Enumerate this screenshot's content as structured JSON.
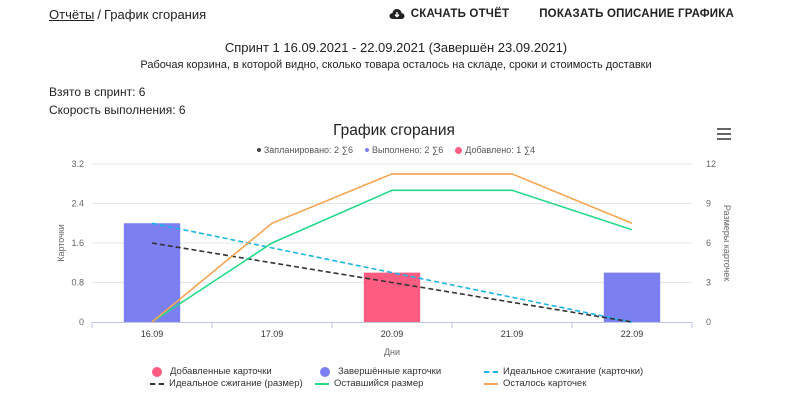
{
  "breadcrumb": {
    "parent": "Отчёты",
    "separator": "/",
    "current": "График сгорания"
  },
  "actions": {
    "download": "СКАЧАТЬ ОТЧЁТ",
    "show_description": "ПОКАЗАТЬ ОПИСАНИЕ ГРАФИКА"
  },
  "sprint": {
    "title": "Спринт 1 16.09.2021 - 22.09.2021 (Завершён 23.09.2021)",
    "description": "Рабочая корзина, в которой видно, сколько товара осталось на складе, сроки и стоимость доставки"
  },
  "stats": {
    "taken": "Взято в спринт: 6",
    "speed": "Скорость выполнения: 6"
  },
  "top_legend": [
    {
      "label": "Запланировано: 2 ∑6",
      "color": "#444444"
    },
    {
      "label": "Выполнено: 2 ∑6",
      "color": "#7b7ff0"
    },
    {
      "label": "Добавлено: 1 ∑4",
      "color": "#ff5c82"
    }
  ],
  "colors": {
    "added": "#ff5c82",
    "completed": "#7b7ff0",
    "ideal_cards": "#1ab6e8",
    "ideal_size": "#333333",
    "remaining_size": "#25d98a",
    "remaining_cards": "#f7a552",
    "grid": "#e6e6e6",
    "axis": "#bfc6ea"
  },
  "icons": {
    "download": "cloud-download-icon",
    "menu": "hamburger-menu-icon"
  },
  "chart_data": {
    "type": "bar",
    "title": "График сгорания",
    "xlabel": "Дни",
    "ylabel": "Карточки",
    "y2label": "Размеры карточек",
    "categories": [
      "16.09",
      "17.09",
      "20.09",
      "21.09",
      "22.09"
    ],
    "ylim": [
      0,
      3.2
    ],
    "y_ticks": [
      "0",
      "0.8",
      "1.6",
      "2.4",
      "3.2"
    ],
    "y2lim": [
      0,
      12
    ],
    "y2_ticks": [
      "0",
      "3",
      "6",
      "9",
      "12"
    ],
    "grid": true,
    "legend_position": "bottom",
    "bars": [
      {
        "name": "Добавленные карточки",
        "color": "#ff5c82",
        "values": [
          null,
          null,
          1,
          null,
          null
        ]
      },
      {
        "name": "Завершённые карточки",
        "color": "#7b7ff0",
        "values": [
          2,
          null,
          null,
          null,
          1
        ]
      }
    ],
    "lines": [
      {
        "name": "Идеальное сжигание (карточки)",
        "axis": "left",
        "dashed": true,
        "color": "#1ab6e8",
        "values": [
          2,
          1.5,
          1,
          0.5,
          0
        ]
      },
      {
        "name": "Идеальное сжигание (размер)",
        "axis": "right",
        "dashed": true,
        "color": "#333333",
        "values": [
          6,
          4.5,
          3,
          1.5,
          0
        ]
      },
      {
        "name": "Оставшийся размер",
        "axis": "right",
        "dashed": false,
        "color": "#25d98a",
        "values": [
          0,
          6,
          10,
          10,
          7
        ]
      },
      {
        "name": "Осталось карточек",
        "axis": "left",
        "dashed": false,
        "color": "#f7a552",
        "values": [
          0,
          2,
          3,
          3,
          2
        ]
      }
    ]
  }
}
